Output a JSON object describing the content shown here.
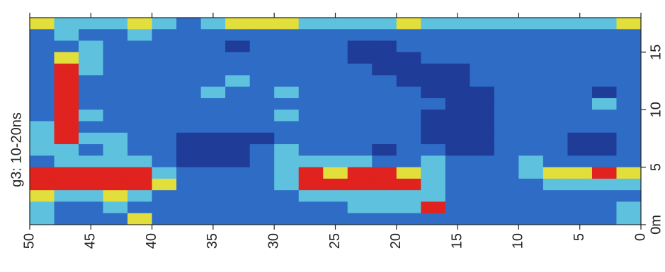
{
  "chart_data": {
    "type": "heatmap",
    "ylabel": "g3: 10-20ns",
    "xlim": [
      50,
      0
    ],
    "ylim": [
      0,
      18
    ],
    "xticks": [
      50,
      45,
      40,
      35,
      30,
      25,
      20,
      15,
      10,
      5,
      0
    ],
    "yticks": [
      {
        "value": 0,
        "label": "0m"
      },
      5,
      10,
      15
    ],
    "xbins": [
      50,
      48,
      46,
      44,
      42,
      40,
      38,
      36,
      34,
      32,
      30,
      28,
      26,
      24,
      22,
      20,
      18,
      16,
      14,
      12,
      10,
      8,
      6,
      4,
      2,
      0
    ],
    "ybins": [
      18,
      17,
      16,
      15,
      14,
      13,
      12,
      11,
      10,
      9,
      8,
      7,
      6,
      5,
      4,
      3,
      2,
      1,
      0
    ],
    "colors": [
      "#1e3c98",
      "#2e6cc6",
      "#5ec2de",
      "#e2de3c",
      "#e0231e"
    ],
    "z": [
      [
        3,
        2,
        2,
        2,
        3,
        2,
        1,
        2,
        3,
        3,
        3,
        2,
        2,
        2,
        2,
        3,
        2,
        2,
        2,
        2,
        2,
        2,
        2,
        2,
        3
      ],
      [
        1,
        2,
        1,
        1,
        2,
        1,
        1,
        1,
        1,
        1,
        1,
        1,
        1,
        1,
        1,
        1,
        1,
        1,
        1,
        1,
        1,
        1,
        1,
        1,
        1
      ],
      [
        1,
        1,
        2,
        1,
        1,
        1,
        1,
        1,
        0,
        1,
        1,
        1,
        1,
        0,
        0,
        1,
        1,
        1,
        1,
        1,
        1,
        1,
        1,
        1,
        1
      ],
      [
        1,
        3,
        2,
        1,
        1,
        1,
        1,
        1,
        1,
        1,
        1,
        1,
        1,
        0,
        0,
        0,
        1,
        1,
        1,
        1,
        1,
        1,
        1,
        1,
        1
      ],
      [
        1,
        4,
        2,
        1,
        1,
        1,
        1,
        1,
        1,
        1,
        1,
        1,
        1,
        1,
        0,
        0,
        0,
        0,
        1,
        1,
        1,
        1,
        1,
        1,
        1
      ],
      [
        1,
        4,
        1,
        1,
        1,
        1,
        1,
        1,
        2,
        1,
        1,
        1,
        1,
        1,
        1,
        0,
        0,
        0,
        1,
        1,
        1,
        1,
        1,
        1,
        1
      ],
      [
        1,
        4,
        1,
        1,
        1,
        1,
        1,
        2,
        1,
        1,
        2,
        1,
        1,
        1,
        1,
        1,
        0,
        0,
        0,
        1,
        1,
        1,
        1,
        0,
        1
      ],
      [
        1,
        4,
        1,
        1,
        1,
        1,
        1,
        1,
        1,
        1,
        1,
        1,
        1,
        1,
        1,
        1,
        1,
        0,
        0,
        1,
        1,
        1,
        1,
        2,
        1
      ],
      [
        1,
        4,
        2,
        1,
        1,
        1,
        1,
        1,
        1,
        1,
        2,
        1,
        1,
        1,
        1,
        1,
        0,
        0,
        0,
        1,
        1,
        1,
        1,
        1,
        1
      ],
      [
        2,
        4,
        1,
        1,
        1,
        1,
        1,
        1,
        1,
        1,
        1,
        1,
        1,
        1,
        1,
        1,
        0,
        0,
        0,
        1,
        1,
        1,
        1,
        1,
        1
      ],
      [
        2,
        4,
        2,
        2,
        1,
        1,
        0,
        0,
        0,
        0,
        1,
        1,
        1,
        1,
        1,
        1,
        0,
        0,
        0,
        1,
        1,
        1,
        0,
        0,
        1
      ],
      [
        2,
        2,
        1,
        2,
        1,
        1,
        0,
        0,
        0,
        1,
        2,
        1,
        1,
        1,
        0,
        1,
        1,
        0,
        0,
        1,
        1,
        1,
        0,
        0,
        1
      ],
      [
        1,
        2,
        2,
        2,
        2,
        1,
        0,
        0,
        0,
        1,
        2,
        2,
        2,
        2,
        1,
        1,
        2,
        1,
        1,
        1,
        2,
        1,
        1,
        1,
        1
      ],
      [
        4,
        4,
        4,
        4,
        4,
        2,
        1,
        1,
        1,
        1,
        2,
        4,
        3,
        4,
        4,
        3,
        2,
        1,
        1,
        1,
        2,
        3,
        3,
        4,
        3
      ],
      [
        4,
        4,
        4,
        4,
        4,
        3,
        1,
        1,
        1,
        1,
        2,
        4,
        4,
        4,
        4,
        4,
        2,
        1,
        1,
        1,
        1,
        2,
        2,
        2,
        2
      ],
      [
        3,
        2,
        2,
        3,
        2,
        1,
        1,
        1,
        1,
        1,
        1,
        2,
        2,
        2,
        2,
        2,
        2,
        1,
        1,
        1,
        1,
        1,
        1,
        1,
        1
      ],
      [
        2,
        1,
        1,
        2,
        1,
        1,
        1,
        1,
        1,
        1,
        1,
        1,
        1,
        2,
        2,
        2,
        4,
        1,
        1,
        1,
        1,
        1,
        1,
        1,
        2
      ],
      [
        2,
        1,
        1,
        1,
        3,
        1,
        1,
        1,
        1,
        1,
        1,
        1,
        1,
        1,
        1,
        1,
        1,
        1,
        1,
        1,
        1,
        1,
        1,
        1,
        2
      ]
    ]
  }
}
